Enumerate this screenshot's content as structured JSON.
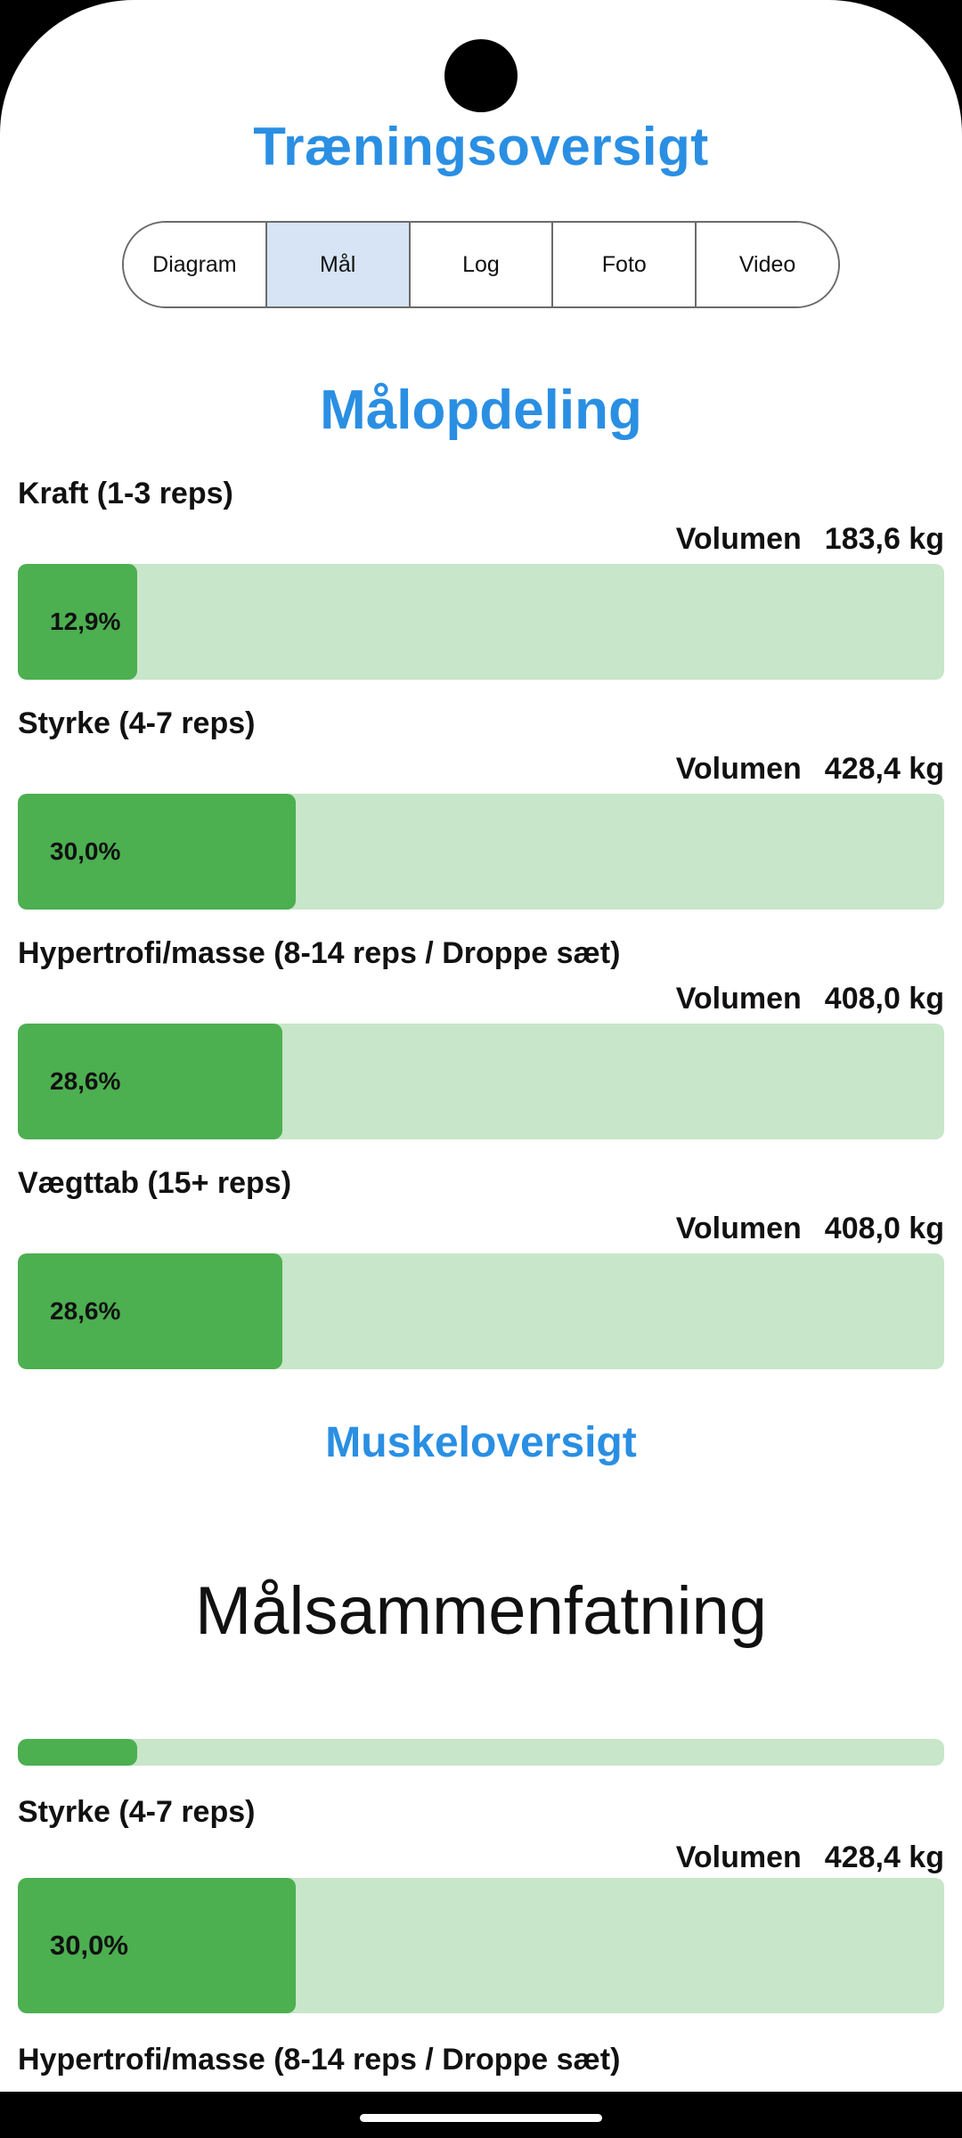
{
  "app_title": "Træningsoversigt",
  "tabs": [
    {
      "label": "Diagram",
      "active": false
    },
    {
      "label": "Mål",
      "active": true
    },
    {
      "label": "Log",
      "active": false
    },
    {
      "label": "Foto",
      "active": false
    },
    {
      "label": "Video",
      "active": false
    }
  ],
  "goal_section": {
    "title": "Målopdeling",
    "volume_label": "Volumen",
    "goals": [
      {
        "label": "Kraft (1-3 reps)",
        "volume": "183,6 kg",
        "percent_text": "12,9%",
        "percent": 12.9
      },
      {
        "label": "Styrke (4-7 reps)",
        "volume": "428,4 kg",
        "percent_text": "30,0%",
        "percent": 30.0
      },
      {
        "label": "Hypertrofi/masse (8-14 reps / Droppe sæt)",
        "volume": "408,0 kg",
        "percent_text": "28,6%",
        "percent": 28.6
      },
      {
        "label": "Vægttab (15+ reps)",
        "volume": "408,0 kg",
        "percent_text": "28,6%",
        "percent": 28.6
      }
    ]
  },
  "muscle_section": {
    "title": "Muskeloversigt"
  },
  "summary": {
    "title": "Målsammenfatning",
    "partial_bar_percent": 12.9,
    "goal": {
      "label": "Styrke (4-7 reps)",
      "volume_label": "Volumen",
      "volume": "428,4 kg",
      "percent_text": "30,0%",
      "percent": 30.0
    },
    "next_label": "Hypertrofi/masse (8-14 reps / Droppe sæt)"
  },
  "colors": {
    "accent": "#2a8fe3",
    "bar_fill": "#4caf50",
    "bar_track": "#c8e6c9",
    "active_tab": "#d6e4f5"
  }
}
